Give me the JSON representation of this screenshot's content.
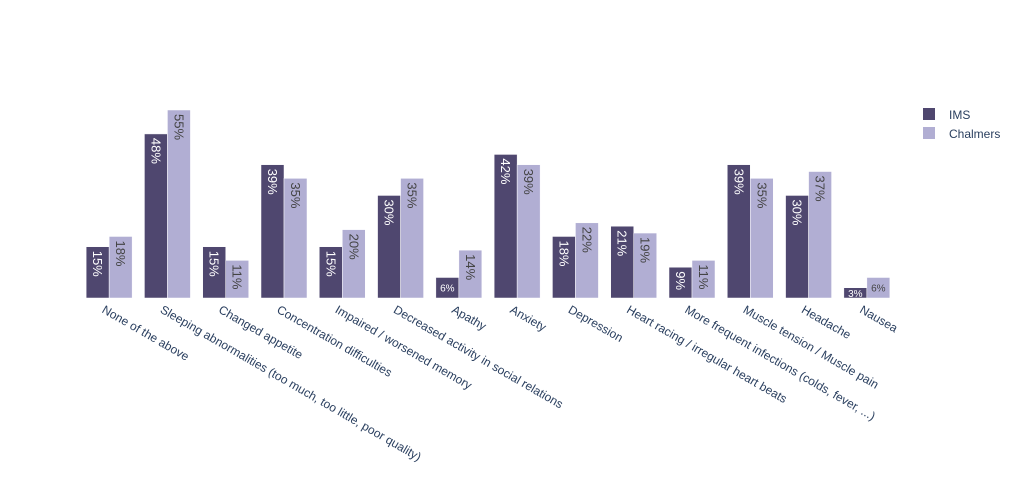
{
  "chart_data": {
    "type": "bar",
    "categories": [
      "None of the above",
      "Sleeping abnormalities (too much, too little, poor quality)",
      "Changed appetite",
      "Concentration difficulties",
      "Impaired / worsened memory",
      "Decreased  activity in social relations",
      "Apathy",
      "Anxiety",
      "Depression",
      "Heart racing / irregular heart beats",
      "More frequent infections (colds, fever, ...)",
      "Muscle tension / Muscle pain",
      "Headache",
      "Nausea"
    ],
    "series": [
      {
        "name": "IMS",
        "color": "#4f476f",
        "values": [
          15,
          48,
          15,
          39,
          15,
          30,
          6,
          42,
          18,
          21,
          9,
          39,
          30,
          3
        ],
        "labels": [
          "15%",
          "48%",
          "15%",
          "39%",
          "15%",
          "30%",
          "6%",
          "42%",
          "18%",
          "21%",
          "9%",
          "39%",
          "30%",
          "3%"
        ]
      },
      {
        "name": "Chalmers",
        "color": "#b1aed3",
        "values": [
          18,
          55,
          11,
          35,
          20,
          35,
          14,
          39,
          22,
          19,
          11,
          35,
          37,
          6
        ],
        "labels": [
          "18%",
          "55%",
          "11%",
          "35%",
          "20%",
          "35%",
          "14%",
          "39%",
          "22%",
          "19%",
          "11%",
          "35%",
          "37%",
          "6%"
        ]
      }
    ],
    "ylim": [
      0,
      55
    ],
    "grid": false,
    "legend": "top-right",
    "xtick_rotation": 30
  }
}
